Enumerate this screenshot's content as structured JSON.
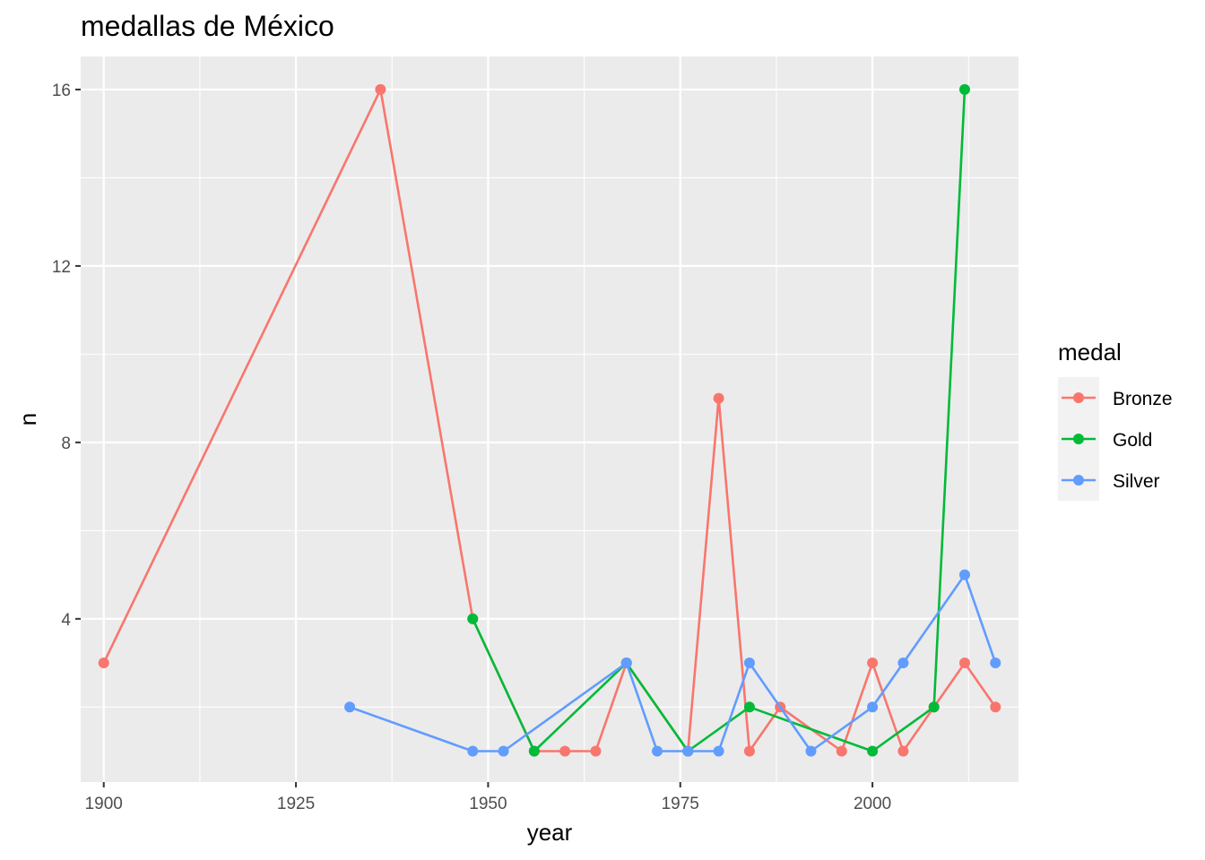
{
  "chart_data": {
    "type": "line",
    "title": "medallas de México",
    "xlabel": "year",
    "ylabel": "n",
    "xlim": [
      1897,
      2019
    ],
    "ylim": [
      0.3,
      16.75
    ],
    "x_ticks": [
      1900,
      1925,
      1950,
      1975,
      2000
    ],
    "x_tick_labels": [
      "1900",
      "1925",
      "1950",
      "1975",
      "2000"
    ],
    "y_ticks": [
      4,
      8,
      12,
      16
    ],
    "y_tick_labels": [
      "4",
      "8",
      "12",
      "16"
    ],
    "grid": true,
    "legend": {
      "title": "medal",
      "position": "right"
    },
    "series": [
      {
        "name": "Bronze",
        "color": "#f8766d",
        "points": [
          {
            "x": 1900,
            "y": 3
          },
          {
            "x": 1936,
            "y": 16
          },
          {
            "x": 1948,
            "y": 4
          },
          {
            "x": 1956,
            "y": 1
          },
          {
            "x": 1960,
            "y": 1
          },
          {
            "x": 1964,
            "y": 1
          },
          {
            "x": 1968,
            "y": 3
          },
          {
            "x": 1976,
            "y": 1
          },
          {
            "x": 1980,
            "y": 9
          },
          {
            "x": 1984,
            "y": 1
          },
          {
            "x": 1988,
            "y": 2
          },
          {
            "x": 1996,
            "y": 1
          },
          {
            "x": 2000,
            "y": 3
          },
          {
            "x": 2004,
            "y": 1
          },
          {
            "x": 2008,
            "y": 2
          },
          {
            "x": 2012,
            "y": 3
          },
          {
            "x": 2016,
            "y": 2
          }
        ]
      },
      {
        "name": "Gold",
        "color": "#00ba38",
        "points": [
          {
            "x": 1948,
            "y": 4
          },
          {
            "x": 1956,
            "y": 1
          },
          {
            "x": 1968,
            "y": 3
          },
          {
            "x": 1976,
            "y": 1
          },
          {
            "x": 1984,
            "y": 2
          },
          {
            "x": 2000,
            "y": 1
          },
          {
            "x": 2008,
            "y": 2
          },
          {
            "x": 2012,
            "y": 16
          }
        ]
      },
      {
        "name": "Silver",
        "color": "#619cff",
        "points": [
          {
            "x": 1932,
            "y": 2
          },
          {
            "x": 1948,
            "y": 1
          },
          {
            "x": 1952,
            "y": 1
          },
          {
            "x": 1968,
            "y": 3
          },
          {
            "x": 1972,
            "y": 1
          },
          {
            "x": 1976,
            "y": 1
          },
          {
            "x": 1980,
            "y": 1
          },
          {
            "x": 1984,
            "y": 3
          },
          {
            "x": 1992,
            "y": 1
          },
          {
            "x": 2000,
            "y": 2
          },
          {
            "x": 2004,
            "y": 3
          },
          {
            "x": 2012,
            "y": 5
          },
          {
            "x": 2016,
            "y": 3
          }
        ]
      }
    ]
  }
}
